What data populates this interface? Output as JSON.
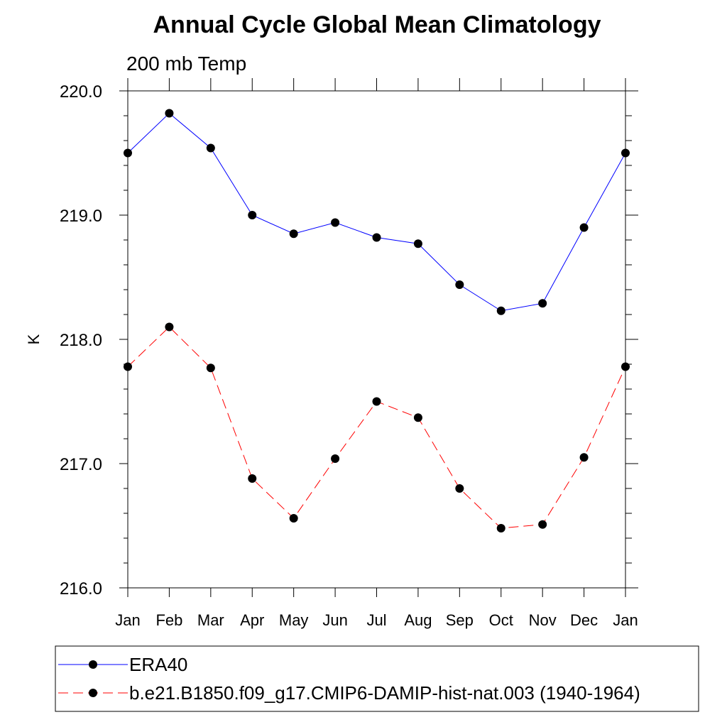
{
  "chart_data": {
    "type": "line",
    "title": "Annual Cycle Global Mean Climatology",
    "subtitle": "200 mb Temp",
    "xlabel": "",
    "ylabel": "K",
    "categories": [
      "Jan",
      "Feb",
      "Mar",
      "Apr",
      "May",
      "Jun",
      "Jul",
      "Aug",
      "Sep",
      "Oct",
      "Nov",
      "Dec",
      "Jan"
    ],
    "ylim": [
      216.0,
      220.0
    ],
    "yticks": [
      "216.0",
      "217.0",
      "218.0",
      "219.0",
      "220.0"
    ],
    "grid": false,
    "legend_position": "bottom",
    "series": [
      {
        "name": "ERA40",
        "color": "#0000ff",
        "dash": "solid",
        "values": [
          219.5,
          219.82,
          219.54,
          219.0,
          218.85,
          218.94,
          218.82,
          218.77,
          218.44,
          218.23,
          218.29,
          218.9,
          219.5
        ]
      },
      {
        "name": "b.e21.B1850.f09_g17.CMIP6-DAMIP-hist-nat.003 (1940-1964)",
        "color": "#ff0000",
        "dash": "dashed",
        "values": [
          217.78,
          218.1,
          217.77,
          216.88,
          216.56,
          217.04,
          217.5,
          217.37,
          216.8,
          216.48,
          216.51,
          217.05,
          217.78
        ]
      }
    ]
  }
}
